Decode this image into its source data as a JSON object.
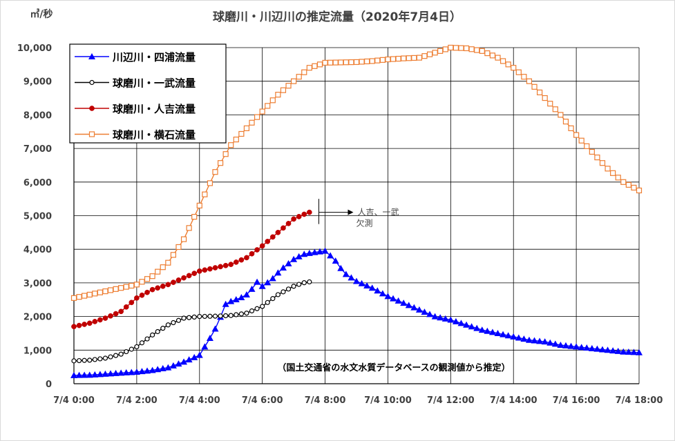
{
  "chart_data": {
    "type": "line",
    "title": "球磨川・川辺川の推定流量（2020年7月4日）",
    "unit_label": "㎥/秒",
    "ylim": [
      0,
      10000
    ],
    "yticks": [
      0,
      1000,
      2000,
      3000,
      4000,
      5000,
      6000,
      7000,
      8000,
      9000,
      10000
    ],
    "ytick_labels": [
      "0",
      "1,000",
      "2,000",
      "3,000",
      "4,000",
      "5,000",
      "6,000",
      "7,000",
      "8,000",
      "9,000",
      "10,000"
    ],
    "xlim_hours": [
      0,
      18
    ],
    "xticks": [
      0,
      2,
      4,
      6,
      8,
      10,
      12,
      14,
      16,
      18
    ],
    "xtick_labels": [
      "7/4 0:00",
      "7/4 2:00",
      "7/4 4:00",
      "7/4 6:00",
      "7/4 8:00",
      "7/4 10:00",
      "7/4 12:00",
      "7/4 14:00",
      "7/4 16:00",
      "7/4 18:00"
    ],
    "grid": true,
    "legend_position": "top-left",
    "note": "（国土交通省の水文水質データベースの観測値から推定）",
    "annotation": {
      "line1": "人吉、一武",
      "line2": "欠測",
      "time": 7.8
    },
    "series": [
      {
        "name": "川辺川・四浦流量",
        "color": "#0000ff",
        "marker": "triangle",
        "points": [
          [
            0,
            250
          ],
          [
            0.5,
            260
          ],
          [
            1,
            290
          ],
          [
            1.5,
            320
          ],
          [
            2,
            350
          ],
          [
            2.5,
            400
          ],
          [
            3,
            480
          ],
          [
            3.5,
            650
          ],
          [
            4,
            850
          ],
          [
            4.3,
            1300
          ],
          [
            4.6,
            1800
          ],
          [
            4.8,
            2350
          ],
          [
            5,
            2450
          ],
          [
            5.3,
            2550
          ],
          [
            5.6,
            2700
          ],
          [
            5.8,
            3050
          ],
          [
            6,
            2900
          ],
          [
            6.3,
            3100
          ],
          [
            6.6,
            3400
          ],
          [
            7,
            3700
          ],
          [
            7.3,
            3850
          ],
          [
            7.6,
            3900
          ],
          [
            8,
            3950
          ],
          [
            8.3,
            3700
          ],
          [
            8.6,
            3300
          ],
          [
            9,
            3050
          ],
          [
            9.5,
            2850
          ],
          [
            10,
            2600
          ],
          [
            10.5,
            2400
          ],
          [
            11,
            2200
          ],
          [
            11.5,
            2000
          ],
          [
            12,
            1900
          ],
          [
            12.5,
            1750
          ],
          [
            13,
            1600
          ],
          [
            13.5,
            1500
          ],
          [
            14,
            1400
          ],
          [
            14.5,
            1300
          ],
          [
            15,
            1250
          ],
          [
            15.5,
            1150
          ],
          [
            16,
            1100
          ],
          [
            16.5,
            1050
          ],
          [
            17,
            1000
          ],
          [
            17.5,
            950
          ],
          [
            18,
            930
          ]
        ]
      },
      {
        "name": "球磨川・一武流量",
        "color": "#000000",
        "marker": "open-circle",
        "points": [
          [
            0,
            680
          ],
          [
            0.5,
            700
          ],
          [
            1,
            760
          ],
          [
            1.5,
            880
          ],
          [
            2,
            1100
          ],
          [
            2.5,
            1450
          ],
          [
            3,
            1750
          ],
          [
            3.5,
            1950
          ],
          [
            4,
            2000
          ],
          [
            4.5,
            2010
          ],
          [
            5,
            2030
          ],
          [
            5.5,
            2100
          ],
          [
            6,
            2300
          ],
          [
            6.5,
            2650
          ],
          [
            7,
            2900
          ],
          [
            7.3,
            3000
          ],
          [
            7.5,
            3030
          ]
        ]
      },
      {
        "name": "球磨川・人吉流量",
        "color": "#c00000",
        "marker": "filled-circle",
        "points": [
          [
            0,
            1700
          ],
          [
            0.5,
            1800
          ],
          [
            1,
            1950
          ],
          [
            1.5,
            2150
          ],
          [
            2,
            2550
          ],
          [
            2.5,
            2800
          ],
          [
            3,
            2950
          ],
          [
            3.5,
            3150
          ],
          [
            4,
            3350
          ],
          [
            4.5,
            3450
          ],
          [
            5,
            3550
          ],
          [
            5.5,
            3750
          ],
          [
            6,
            4100
          ],
          [
            6.5,
            4500
          ],
          [
            7,
            4900
          ],
          [
            7.3,
            5030
          ],
          [
            7.5,
            5100
          ]
        ]
      },
      {
        "name": "球磨川・横石流量",
        "color": "#ed7d31",
        "marker": "open-square",
        "points": [
          [
            0,
            2550
          ],
          [
            0.5,
            2650
          ],
          [
            1,
            2750
          ],
          [
            1.5,
            2850
          ],
          [
            2,
            2950
          ],
          [
            2.5,
            3200
          ],
          [
            3,
            3600
          ],
          [
            3.5,
            4300
          ],
          [
            4,
            5300
          ],
          [
            4.5,
            6300
          ],
          [
            5,
            7100
          ],
          [
            5.5,
            7600
          ],
          [
            6,
            8100
          ],
          [
            6.5,
            8600
          ],
          [
            7,
            9000
          ],
          [
            7.5,
            9400
          ],
          [
            8,
            9550
          ],
          [
            8.5,
            9560
          ],
          [
            9,
            9570
          ],
          [
            9.5,
            9600
          ],
          [
            10,
            9650
          ],
          [
            10.5,
            9680
          ],
          [
            11,
            9700
          ],
          [
            11.5,
            9850
          ],
          [
            12,
            10000
          ],
          [
            12.5,
            9980
          ],
          [
            13,
            9900
          ],
          [
            13.5,
            9700
          ],
          [
            14,
            9400
          ],
          [
            14.5,
            9000
          ],
          [
            15,
            8500
          ],
          [
            15.5,
            8000
          ],
          [
            16,
            7400
          ],
          [
            16.5,
            6900
          ],
          [
            17,
            6400
          ],
          [
            17.5,
            6000
          ],
          [
            18,
            5750
          ]
        ]
      }
    ]
  }
}
